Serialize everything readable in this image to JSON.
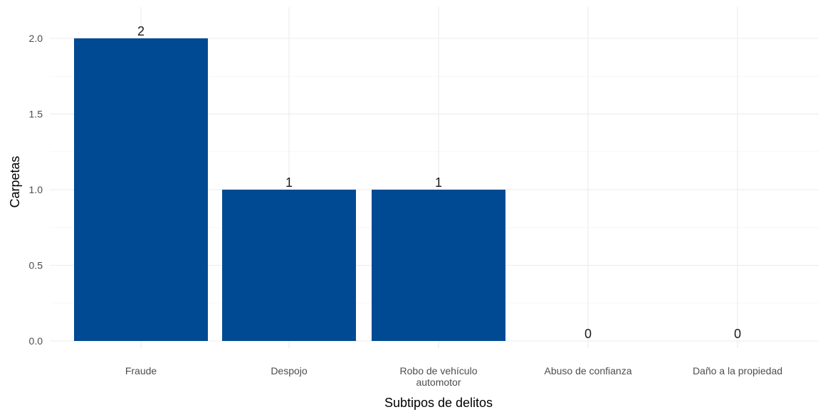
{
  "chart_data": {
    "type": "bar",
    "categories": [
      "Fraude",
      "Despojo",
      "Robo de vehículo\nautomotor",
      "Abuso de confianza",
      "Daño a la propiedad"
    ],
    "values": [
      2,
      1,
      1,
      0,
      0
    ],
    "data_labels": [
      "2",
      "1",
      "1",
      "0",
      "0"
    ],
    "xlabel": "Subtipos de delitos",
    "ylabel": "Carpetas",
    "ylim": [
      0,
      2.0
    ],
    "yticks": [
      "0.0",
      "0.5",
      "1.0",
      "1.5",
      "2.0"
    ],
    "grid": true,
    "legend": "none",
    "bar_color": "#004a93"
  }
}
